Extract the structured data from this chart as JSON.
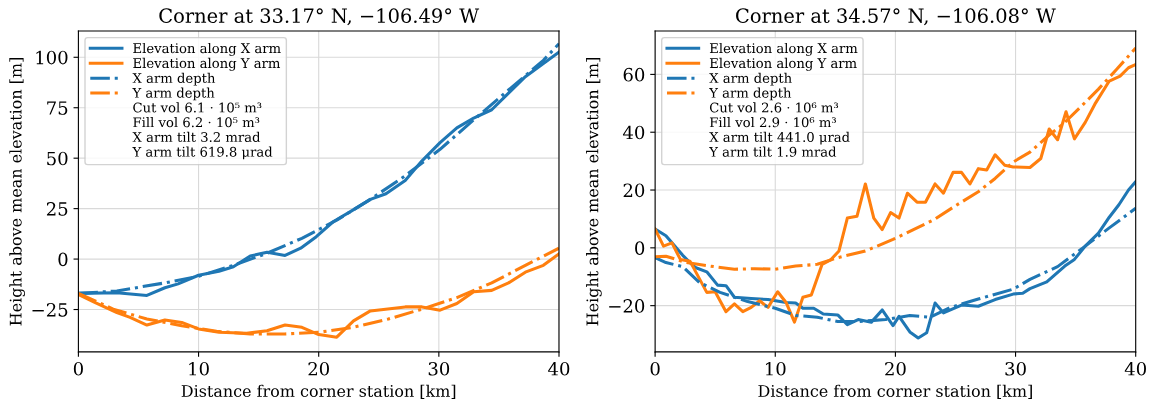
{
  "chart_data": [
    {
      "type": "line",
      "title": "Corner at 33.17° N, −106.49° W",
      "xlabel": "Distance from corner station [km]",
      "ylabel": "Height above mean elevation [m]",
      "xlim": [
        0,
        40
      ],
      "xticks": [
        0,
        10,
        20,
        30,
        40
      ],
      "ylim": [
        -46,
        113
      ],
      "yticks": [
        {
          "value": -25,
          "label": "−25"
        },
        0,
        25,
        50,
        75,
        100
      ],
      "grid": true,
      "legend": "top left",
      "annotations": [
        "Cut vol 6.1 · 10⁵ m³",
        "Fill vol 6.2 · 10⁵ m³",
        "X arm tilt 3.2 mrad",
        "Y arm tilt 619.8 μrad"
      ],
      "series": [
        {
          "name": "Elevation along X arm",
          "color": "#1f77b4",
          "line_style": "solid",
          "x": [
            0,
            3.2,
            5.7,
            7.2,
            8.3,
            10,
            11.7,
            12.9,
            14.3,
            15.7,
            17.2,
            18.5,
            19.8,
            21.2,
            22.6,
            24.3,
            25.6,
            27.2,
            28.6,
            30.1,
            31.5,
            32.9,
            34.4,
            35.8,
            37.2,
            38.7,
            40
          ],
          "values": [
            -17,
            -16.7,
            -18,
            -14.2,
            -12.3,
            -8,
            -6,
            -3.8,
            1.5,
            3.4,
            1.8,
            5.4,
            11.1,
            18.5,
            23.4,
            29.6,
            32.4,
            38.9,
            48.7,
            57.7,
            65,
            69.9,
            74,
            82.2,
            90.4,
            96.9,
            102.6
          ]
        },
        {
          "name": "Elevation along Y arm",
          "color": "#ff7f0e",
          "line_style": "solid",
          "x": [
            0,
            1.4,
            3.2,
            4.3,
            5.7,
            7.2,
            8.6,
            10,
            11.7,
            14,
            15.7,
            17.2,
            18.6,
            20,
            21.5,
            22.9,
            24.3,
            27.2,
            28.6,
            30.1,
            31.5,
            32.9,
            34.4,
            35.8,
            37.2,
            38.7,
            40
          ],
          "values": [
            -17.5,
            -21.6,
            -26.5,
            -28.9,
            -32.7,
            -30.2,
            -31.4,
            -34.6,
            -36.3,
            -36.8,
            -35.5,
            -32.7,
            -33.8,
            -37.4,
            -38.7,
            -30.6,
            -25.7,
            -23.7,
            -23.7,
            -25.3,
            -22,
            -16.2,
            -15.5,
            -11.8,
            -6.5,
            -3.1,
            2.6
          ]
        },
        {
          "name": "X arm depth",
          "color": "#1f77b4",
          "line_style": "dashdot",
          "x": [
            0,
            3.2,
            7.2,
            10,
            12.9,
            15.7,
            18.6,
            21.5,
            24.3,
            27.2,
            30.1,
            32.9,
            35.8,
            38.7,
            40
          ],
          "values": [
            -17,
            -15.8,
            -11.8,
            -8.5,
            -3.1,
            2.9,
            10.3,
            19.3,
            29.6,
            41.3,
            54.4,
            69,
            83.8,
            98.5,
            106.7
          ]
        },
        {
          "name": "Y arm depth",
          "color": "#ff7f0e",
          "line_style": "dashdot",
          "x": [
            0,
            2.9,
            5.7,
            8.6,
            11.5,
            14.3,
            17.2,
            20,
            22.9,
            25.8,
            28.6,
            31.5,
            34.4,
            37.2,
            40
          ],
          "values": [
            -17,
            -24.8,
            -29.7,
            -33,
            -35.8,
            -37.1,
            -37.1,
            -36.3,
            -33.8,
            -29.7,
            -24.8,
            -19.1,
            -11.8,
            -3.1,
            5.4
          ]
        }
      ]
    },
    {
      "type": "line",
      "title": "Corner at 34.57° N, −106.08° W",
      "xlabel": "Distance from corner station [km]",
      "ylabel": "Height above mean elevation [m]",
      "xlim": [
        0,
        40
      ],
      "xticks": [
        0,
        10,
        20,
        30,
        40
      ],
      "ylim": [
        -36,
        75
      ],
      "yticks": [
        {
          "value": -20,
          "label": "−20"
        },
        0,
        20,
        40,
        60
      ],
      "grid": true,
      "legend": "top left",
      "annotations": [
        "Cut vol 2.6 · 10⁶ m³",
        "Fill vol 2.9 · 10⁶ m³",
        "X arm tilt 441.0 μrad",
        "Y arm tilt 1.9 mrad"
      ],
      "series": [
        {
          "name": "Elevation along X arm",
          "color": "#1f77b4",
          "line_style": "solid",
          "x": [
            0,
            0.9,
            2.3,
            2.9,
            3.4,
            4.3,
            5.2,
            5.9,
            6.6,
            8,
            9.4,
            10.9,
            11.7,
            12.3,
            13.2,
            14,
            15.2,
            16,
            16.9,
            18,
            18.9,
            19.8,
            20.3,
            21.2,
            21.9,
            22.6,
            23.3,
            24,
            25.5,
            26.9,
            28.3,
            29.8,
            30.6,
            31.2,
            32.6,
            34.1,
            34.9,
            35.8,
            36.9,
            37.8,
            38.6,
            39.4,
            40
          ],
          "values": [
            6.5,
            4.2,
            -2.6,
            -5.1,
            -6.9,
            -8.3,
            -12.9,
            -13.1,
            -17.1,
            -17.5,
            -17.9,
            -18.9,
            -19.1,
            -20.9,
            -20.9,
            -22.9,
            -23.2,
            -26.6,
            -24.8,
            -25.7,
            -21.5,
            -26.9,
            -23.7,
            -29.1,
            -31.2,
            -29.4,
            -19.1,
            -22.5,
            -19.8,
            -20.2,
            -17.9,
            -16,
            -15.7,
            -14.1,
            -11.8,
            -6.3,
            -4,
            0.6,
            5.1,
            10.6,
            14.9,
            20,
            22.9
          ]
        },
        {
          "name": "Elevation along Y arm",
          "color": "#ff7f0e",
          "line_style": "solid",
          "x": [
            0,
            0.7,
            1.4,
            2.1,
            2.9,
            4.3,
            5,
            5.9,
            6.6,
            7.3,
            8,
            8.7,
            9.4,
            10.2,
            10.9,
            11.6,
            12.3,
            13,
            13.9,
            14.6,
            15.3,
            16,
            16.8,
            17.5,
            18.2,
            18.9,
            19.6,
            20.3,
            21,
            21.8,
            22.5,
            23.3,
            24,
            24.8,
            25.5,
            26.2,
            26.9,
            27.6,
            28.3,
            29.1,
            29.8,
            31.2,
            32.1,
            32.8,
            33.5,
            34.2,
            34.9,
            35.8,
            36.6,
            37.8,
            38.7,
            39.4,
            40
          ],
          "values": [
            6.5,
            0.6,
            1.7,
            -4,
            -4.6,
            -15.4,
            -15.2,
            -22.1,
            -19.4,
            -22.1,
            -20.6,
            -18.3,
            -20.6,
            -15.2,
            -18.9,
            -25.7,
            -17.1,
            -16.3,
            -5.7,
            -4.2,
            -1.1,
            10.3,
            10.9,
            22.1,
            10.3,
            6.3,
            12.2,
            10.3,
            18.9,
            15.8,
            15.8,
            22.1,
            18.9,
            26.1,
            26.1,
            22.1,
            27.4,
            26.9,
            32.2,
            28.6,
            28,
            27.8,
            30.9,
            41.1,
            37.4,
            47.1,
            37.7,
            43.4,
            49.7,
            57.7,
            59.4,
            62.3,
            63.4
          ]
        },
        {
          "name": "X arm depth",
          "color": "#1f77b4",
          "line_style": "dashdot",
          "x": [
            0,
            0.9,
            2.3,
            3.7,
            5.4,
            7.7,
            10,
            11.7,
            13.5,
            15.2,
            16.9,
            19.2,
            21.2,
            22.9,
            24.6,
            26.9,
            29.8,
            31.2,
            33.5,
            35.8,
            37.8,
            40
          ],
          "values": [
            -3.4,
            -5.1,
            -6.5,
            -12,
            -15.4,
            -18.6,
            -20.9,
            -23.4,
            -24,
            -25.5,
            -25.5,
            -24.8,
            -23.4,
            -24,
            -20.6,
            -17.7,
            -14.3,
            -10.9,
            -6.5,
            0.6,
            6.9,
            13.7
          ]
        },
        {
          "name": "Y arm depth",
          "color": "#ff7f0e",
          "line_style": "dashdot",
          "x": [
            0,
            0.9,
            2.6,
            4.9,
            6.6,
            8.3,
            10,
            11.7,
            13.5,
            15.2,
            17.5,
            19.8,
            21.5,
            23.2,
            24.9,
            26.9,
            28.3,
            29.8,
            31.2,
            32.6,
            34.1,
            35.5,
            36.9,
            38.4,
            40
          ],
          "values": [
            -3.1,
            -2.9,
            -5.1,
            -6.5,
            -7.4,
            -7.2,
            -7.4,
            -6.3,
            -5.7,
            -3.4,
            -1.1,
            2.9,
            6.3,
            9.7,
            14.3,
            19.4,
            24,
            29.7,
            33.1,
            38.3,
            43.4,
            49.1,
            54.9,
            61.7,
            69.1
          ]
        }
      ]
    }
  ]
}
